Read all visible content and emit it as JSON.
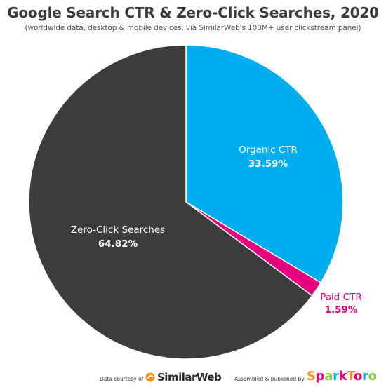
{
  "header": {
    "title": "Google Search CTR & Zero-Click Searches, 2020",
    "subtitle": "(worldwide data, desktop & mobile devices, via SimilarWeb's 100M+ user clickstream panel)"
  },
  "chart_data": {
    "type": "pie",
    "title": "Google Search CTR & Zero-Click Searches, 2020",
    "subtitle": "(worldwide data, desktop & mobile devices, via SimilarWeb's 100M+ user clickstream panel)",
    "start_angle_deg": 0,
    "direction": "clockwise",
    "slices": [
      {
        "label": "Organic CTR",
        "value": 33.59,
        "value_label": "33.59%",
        "color": "#00AEEF",
        "label_color": "#ffffff",
        "value_color": "#ffffff",
        "label_position": "inside"
      },
      {
        "label": "Paid CTR",
        "value": 1.59,
        "value_label": "1.59%",
        "color": "#E6007E",
        "label_color": "#E6007E",
        "value_color": "#E6007E",
        "label_position": "outside"
      },
      {
        "label": "Zero-Click Searches",
        "value": 64.82,
        "value_label": "64.82%",
        "color": "#3C3C3C",
        "label_color": "#ffffff",
        "value_color": "#ffffff",
        "label_position": "inside"
      }
    ],
    "legend": "none"
  },
  "footer": {
    "data_courtesy": "Data courtesy of",
    "similarweb": "SimilarWeb",
    "assembled": "Assembled & published by",
    "sparktoro_letters": [
      "S",
      "p",
      "a",
      "r",
      "k",
      "T",
      "o",
      "r",
      "o"
    ],
    "sparktoro_colors": [
      "#F7931E",
      "#E6007E",
      "#8BC34A",
      "#00AEEF",
      "#E6007E",
      "#F7931E",
      "#E6007E",
      "#00AEEF",
      "#8BC34A"
    ]
  }
}
